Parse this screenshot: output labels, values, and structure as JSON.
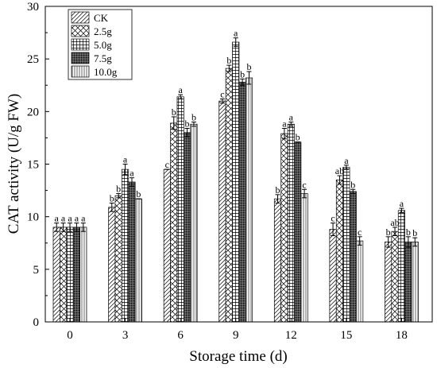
{
  "chart_data": {
    "type": "bar",
    "xlabel": "Storage time (d)",
    "ylabel": "CAT activity (U/g FW)",
    "ylim": [
      0,
      30
    ],
    "yticks": [
      0,
      5,
      10,
      15,
      20,
      25,
      30
    ],
    "grid": false,
    "legend_position": "top-left",
    "categories": [
      "0",
      "3",
      "6",
      "9",
      "12",
      "15",
      "18"
    ],
    "series": [
      {
        "name": "CK",
        "pattern": "diagonal-lines",
        "values": [
          9.0,
          10.9,
          14.5,
          21.0,
          11.7,
          8.8,
          7.6
        ],
        "errors": [
          0.4,
          0.4,
          0.0,
          0.2,
          0.4,
          0.6,
          0.5
        ],
        "labels": [
          "a",
          "b",
          "c",
          "c",
          "b",
          "c",
          "b"
        ]
      },
      {
        "name": "2.5g",
        "pattern": "crosshatch-diagonal",
        "values": [
          9.0,
          12.0,
          18.9,
          24.1,
          17.9,
          13.5,
          8.6
        ],
        "errors": [
          0.4,
          0.2,
          0.6,
          0.3,
          0.5,
          0.4,
          0.4
        ],
        "labels": [
          "a",
          "b",
          "b",
          "b",
          "a",
          "ab",
          "ab"
        ]
      },
      {
        "name": "5.0g",
        "pattern": "grid",
        "values": [
          9.0,
          14.5,
          21.4,
          26.6,
          18.8,
          14.7,
          10.6
        ],
        "errors": [
          0.4,
          0.5,
          0.2,
          0.4,
          0.2,
          0.2,
          0.2
        ],
        "labels": [
          "a",
          "a",
          "a",
          "a",
          "a",
          "a",
          "a"
        ]
      },
      {
        "name": "7.5g",
        "pattern": "dark-dots",
        "values": [
          9.0,
          13.3,
          18.0,
          22.8,
          17.1,
          12.4,
          7.6
        ],
        "errors": [
          0.4,
          0.4,
          0.4,
          0.3,
          0.0,
          0.2,
          0.5
        ],
        "labels": [
          "a",
          "a",
          "b",
          "b",
          "b",
          "b",
          "b"
        ]
      },
      {
        "name": "10.0g",
        "pattern": "vertical-lines",
        "values": [
          9.0,
          11.7,
          18.8,
          23.2,
          12.2,
          7.7,
          7.6
        ],
        "errors": [
          0.4,
          0.0,
          0.2,
          0.6,
          0.4,
          0.4,
          0.4
        ],
        "labels": [
          "a",
          "b",
          "b",
          "b",
          "c",
          "c",
          "b"
        ]
      }
    ]
  }
}
